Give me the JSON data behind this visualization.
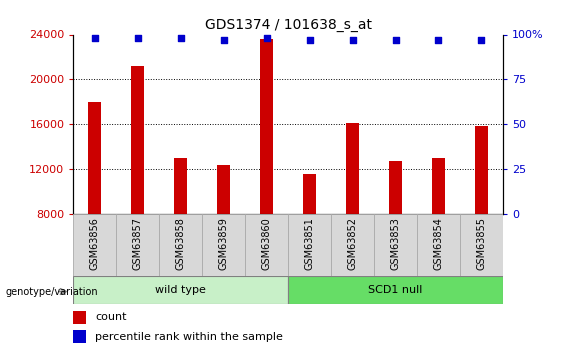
{
  "title": "GDS1374 / 101638_s_at",
  "categories": [
    "GSM63856",
    "GSM63857",
    "GSM63858",
    "GSM63859",
    "GSM63860",
    "GSM63851",
    "GSM63852",
    "GSM63853",
    "GSM63854",
    "GSM63855"
  ],
  "counts": [
    18000,
    21200,
    13000,
    12400,
    23600,
    11600,
    16100,
    12700,
    13000,
    15800
  ],
  "percentiles": [
    98,
    98,
    98,
    97,
    98,
    97,
    97,
    97,
    97,
    97
  ],
  "bar_color": "#cc0000",
  "dot_color": "#0000cc",
  "ylim_left": [
    8000,
    24000
  ],
  "ylim_right": [
    0,
    100
  ],
  "yticks_left": [
    8000,
    12000,
    16000,
    20000,
    24000
  ],
  "yticks_right": [
    0,
    25,
    50,
    75,
    100
  ],
  "ytick_labels_right": [
    "0",
    "25",
    "50",
    "75",
    "100%"
  ],
  "groups": [
    {
      "label": "wild type",
      "start": 0,
      "end": 5,
      "color": "#c8f0c8"
    },
    {
      "label": "SCD1 null",
      "start": 5,
      "end": 10,
      "color": "#66dd66"
    }
  ],
  "group_label": "genotype/variation",
  "legend_count_label": "count",
  "legend_percentile_label": "percentile rank within the sample",
  "background_color": "#ffffff",
  "tick_label_color_left": "#cc0000",
  "tick_label_color_right": "#0000cc",
  "bar_width": 0.3,
  "grid_yticks": [
    12000,
    16000,
    20000
  ],
  "cell_bg_color": "#d8d8d8",
  "cell_border_color": "#aaaaaa"
}
